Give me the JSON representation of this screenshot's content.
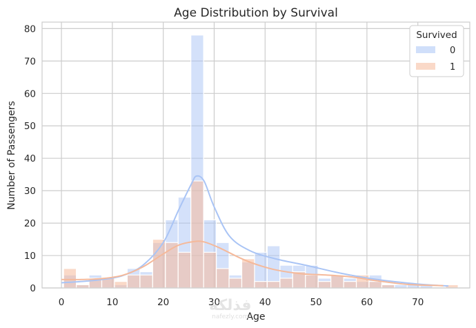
{
  "chart_data": {
    "type": "histogram",
    "title": "Age Distribution by Survival",
    "xlabel": "Age",
    "ylabel": "Number of Passengers",
    "xlim": [
      -3.8,
      80.2
    ],
    "ylim": [
      0,
      82
    ],
    "xticks": [
      0,
      10,
      20,
      30,
      40,
      50,
      60,
      70
    ],
    "yticks": [
      0,
      10,
      20,
      30,
      40,
      50,
      60,
      70,
      80
    ],
    "grid": true,
    "bin_start": 0.42,
    "bin_width": 2.5,
    "legend": {
      "title": "Survived",
      "position": "top-right"
    },
    "series": [
      {
        "name": "0",
        "color": "#a9c4f5",
        "counts": [
          4,
          1,
          4,
          3,
          1,
          6,
          5,
          14,
          21,
          28,
          78,
          21,
          14,
          4,
          8,
          11,
          13,
          7,
          7,
          7,
          3,
          4,
          3,
          2,
          4,
          1,
          1,
          1,
          1,
          0,
          0
        ],
        "kde": [
          [
            0,
            1.6
          ],
          [
            4,
            2.0
          ],
          [
            8,
            2.6
          ],
          [
            12,
            3.8
          ],
          [
            16,
            7
          ],
          [
            20,
            14
          ],
          [
            23,
            24
          ],
          [
            25.5,
            32
          ],
          [
            26.5,
            34.5
          ],
          [
            28,
            33
          ],
          [
            30,
            25
          ],
          [
            33,
            16
          ],
          [
            37,
            11.5
          ],
          [
            42,
            9
          ],
          [
            48,
            7
          ],
          [
            55,
            4.5
          ],
          [
            62,
            2.6
          ],
          [
            70,
            1.2
          ],
          [
            76,
            0.6
          ]
        ]
      },
      {
        "name": "1",
        "color": "#f5b99a",
        "counts": [
          6,
          1,
          3,
          3,
          2,
          4,
          4,
          15,
          14,
          11,
          33,
          11,
          6,
          3,
          9,
          2,
          2,
          3,
          5,
          4,
          2,
          4,
          2,
          4,
          2,
          1,
          0,
          0,
          0,
          0,
          1
        ],
        "kde": [
          [
            0,
            2.6
          ],
          [
            4,
            2.6
          ],
          [
            8,
            2.9
          ],
          [
            12,
            3.9
          ],
          [
            16,
            6.5
          ],
          [
            20,
            10.5
          ],
          [
            23,
            13.2
          ],
          [
            26,
            14.3
          ],
          [
            28,
            14.2
          ],
          [
            31,
            12.4
          ],
          [
            35,
            9.3
          ],
          [
            38,
            7.4
          ],
          [
            42,
            5.6
          ],
          [
            47,
            4.4
          ],
          [
            52,
            4.0
          ],
          [
            57,
            3.4
          ],
          [
            62,
            2.2
          ],
          [
            68,
            1.1
          ],
          [
            75,
            0.7
          ]
        ]
      }
    ]
  },
  "colors": {
    "background": "#ffffff",
    "plot_background": "#ffffff",
    "grid": "#cccccc",
    "spine": "#cccccc",
    "overlap": "#c9c0e0",
    "text": "#262626"
  },
  "watermark": {
    "main": "فذلكة",
    "sub": "nafezly.com"
  }
}
